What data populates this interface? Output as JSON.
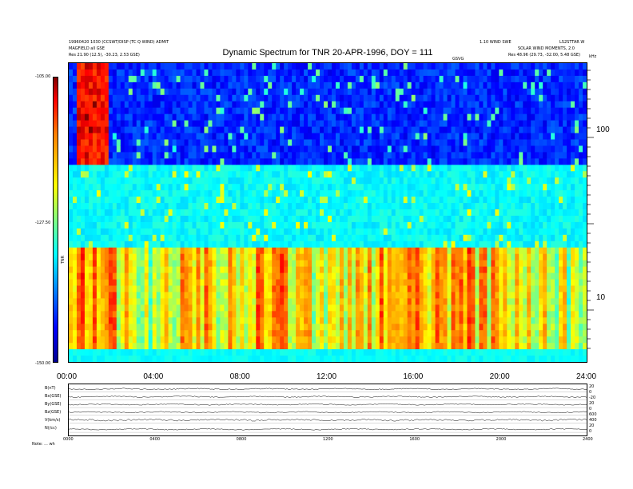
{
  "header": {
    "title": "Dynamic Spectrum for TNR 20-APR-1996, DOY = 111",
    "left_line1": "19960420 1030 (CCSWT/DISP (TC Q WIND) ADMIT",
    "left_line2": "MAGFIELD all GSE",
    "left_line3": "Res   21.90 (12.5), -30.23, 2.53 GSE)",
    "right_line1": "1.10 WIND SWE",
    "right_line2": "SOLAR WIND MOMENTS, 2.0",
    "right_line3": "Res   48.96 (29.73, -32.00, 5.48 GSE)",
    "right_corner": "LS2STTAR W",
    "mid_label": "GSVG",
    "khz": "kHz"
  },
  "colorbar": {
    "top": "-105.00",
    "mid": "-127.50",
    "bottom": "-150.00",
    "title": "TNR"
  },
  "chart_data": {
    "type": "heatmap",
    "title": "Dynamic Spectrum for TNR 20-APR-1996, DOY = 111",
    "x_tick_labels": [
      "00:00",
      "04:00",
      "08:00",
      "12:00",
      "16:00",
      "20:00",
      "24:00"
    ],
    "x_range_hours": [
      0,
      24
    ],
    "y_tick_labels": [
      "100",
      "10"
    ],
    "y_scale": "log",
    "y_range_khz": [
      4,
      245
    ],
    "color_range": [
      -150.0,
      -105.0
    ],
    "colorbar_ticks": [
      "-105.00",
      "-127.50",
      "-150.00"
    ],
    "activity_profile": [
      {
        "t": 0.0,
        "v": 0.55
      },
      {
        "t": 0.4,
        "v": 0.85
      },
      {
        "t": 0.9,
        "v": 0.95
      },
      {
        "t": 1.5,
        "v": 0.9
      },
      {
        "t": 2.2,
        "v": 0.6
      },
      {
        "t": 3.0,
        "v": 0.3
      },
      {
        "t": 4.0,
        "v": 0.35
      },
      {
        "t": 5.0,
        "v": 0.55
      },
      {
        "t": 6.0,
        "v": 0.6
      },
      {
        "t": 7.0,
        "v": 0.55
      },
      {
        "t": 8.0,
        "v": 0.65
      },
      {
        "t": 9.0,
        "v": 0.7
      },
      {
        "t": 10.0,
        "v": 0.75
      },
      {
        "t": 11.0,
        "v": 0.55
      },
      {
        "t": 12.0,
        "v": 0.4
      },
      {
        "t": 13.0,
        "v": 0.55
      },
      {
        "t": 14.0,
        "v": 0.65
      },
      {
        "t": 15.0,
        "v": 0.75
      },
      {
        "t": 16.0,
        "v": 0.85
      },
      {
        "t": 17.0,
        "v": 0.7
      },
      {
        "t": 18.0,
        "v": 0.65
      },
      {
        "t": 19.0,
        "v": 0.7
      },
      {
        "t": 20.0,
        "v": 0.55
      },
      {
        "t": 21.0,
        "v": 0.5
      },
      {
        "t": 22.0,
        "v": 0.45
      },
      {
        "t": 23.0,
        "v": 0.45
      },
      {
        "t": 24.0,
        "v": 0.4
      }
    ]
  },
  "bottom_panel": {
    "row_labels": [
      "B(nT)",
      "Bx(GSE)",
      "By(GSE)",
      "Bz(GSE)",
      "V(km/s)",
      "N(/cc)"
    ],
    "right_labels": [
      "20",
      "0",
      "-20",
      "20",
      "0",
      "600",
      "400",
      "20",
      "0"
    ],
    "x_tick_labels": [
      "0000",
      "0400",
      "0800",
      "1200",
      "1600",
      "2000",
      "2400"
    ],
    "footer": "Note:  ... wh"
  }
}
